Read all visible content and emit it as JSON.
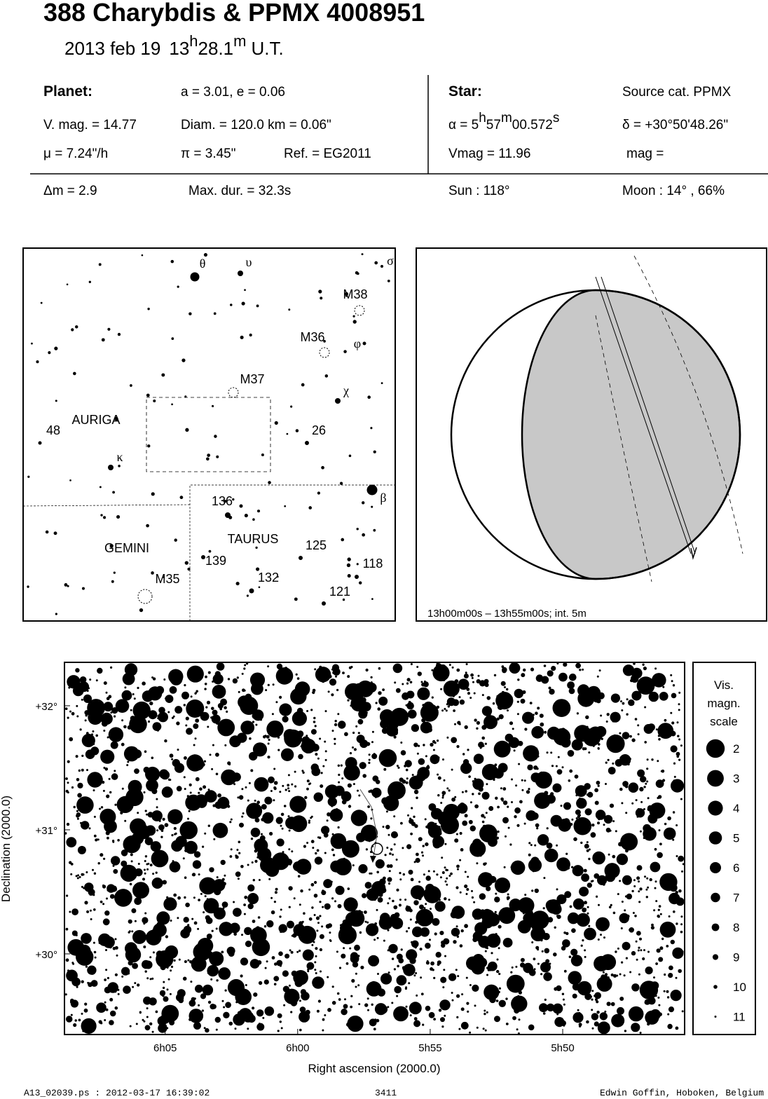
{
  "header": {
    "title": "388 Charybdis  &  PPMX 4008951",
    "date": "2013 feb 19",
    "time_h": "13",
    "time_h_unit": "h",
    "time_m": "28.1",
    "time_m_unit": "m",
    "time_zone": "U.T."
  },
  "info": {
    "planet_label": "Planet:",
    "orbit": "a = 3.01, e = 0.06",
    "vmag": "V. mag. = 14.77",
    "diam": "Diam. = 120.0 km = 0.06\"",
    "motion": "μ =  7.24\"/h",
    "parallax": "π =  3.45\"",
    "ref": "Ref. = EG2011",
    "star_label": "Star:",
    "source": "Source cat.  PPMX",
    "ra_prefix": "α =  5",
    "ra_h": "h",
    "ra_min": "57",
    "ra_m": "m",
    "ra_sec": "00.572",
    "ra_s": "s",
    "dec": "δ = +30°50'48.26\"",
    "star_vmag": "Vmag = 11.96",
    "star_mag": "mag =",
    "delta_m": "Δm = 2.9",
    "max_dur": "Max. dur. = 32.3s",
    "sun": "Sun : 118°",
    "moon": "Moon :  14° , 66%"
  },
  "finder": {
    "labels": [
      "θ",
      "υ",
      "σ",
      "M38",
      "M36",
      "φ",
      "M37",
      "χ",
      "AURIGA",
      "48",
      "26",
      "κ",
      "β",
      "136",
      "GEMINI",
      "TAURUS",
      "125",
      "139",
      "118",
      "132",
      "121",
      "M35"
    ]
  },
  "globe": {
    "caption": "13h00m00s – 13h55m00s; int.  5m"
  },
  "chart_data": {
    "type": "scatter",
    "x_label": "Right ascension (2000.0)",
    "y_label": "Declination (2000.0)",
    "xlim": [
      368.8,
      345.4
    ],
    "ylim": [
      29.35,
      32.35
    ],
    "xticks": [
      {
        "value": 365,
        "label": "6h05"
      },
      {
        "value": 360,
        "label": "6h00"
      },
      {
        "value": 355,
        "label": "5h55"
      },
      {
        "value": 350,
        "label": "5h50"
      }
    ],
    "yticks": [
      {
        "value": 32,
        "label": "+32°"
      },
      {
        "value": 31,
        "label": "+31°"
      },
      {
        "value": 30,
        "label": "+30°"
      }
    ],
    "target": {
      "x": [
        357.0095
      ],
      "y": [
        30.8467
      ]
    },
    "legend": {
      "title": [
        "Vis.",
        "magn.",
        "scale"
      ],
      "magnitudes": [
        2,
        3,
        4,
        5,
        6,
        7,
        8,
        9,
        10,
        11
      ]
    }
  },
  "footer": {
    "file": "A13_02039.ps : 2012-03-17 16:39:02",
    "page": "3411",
    "author": "Edwin Goffin, Hoboken, Belgium"
  }
}
